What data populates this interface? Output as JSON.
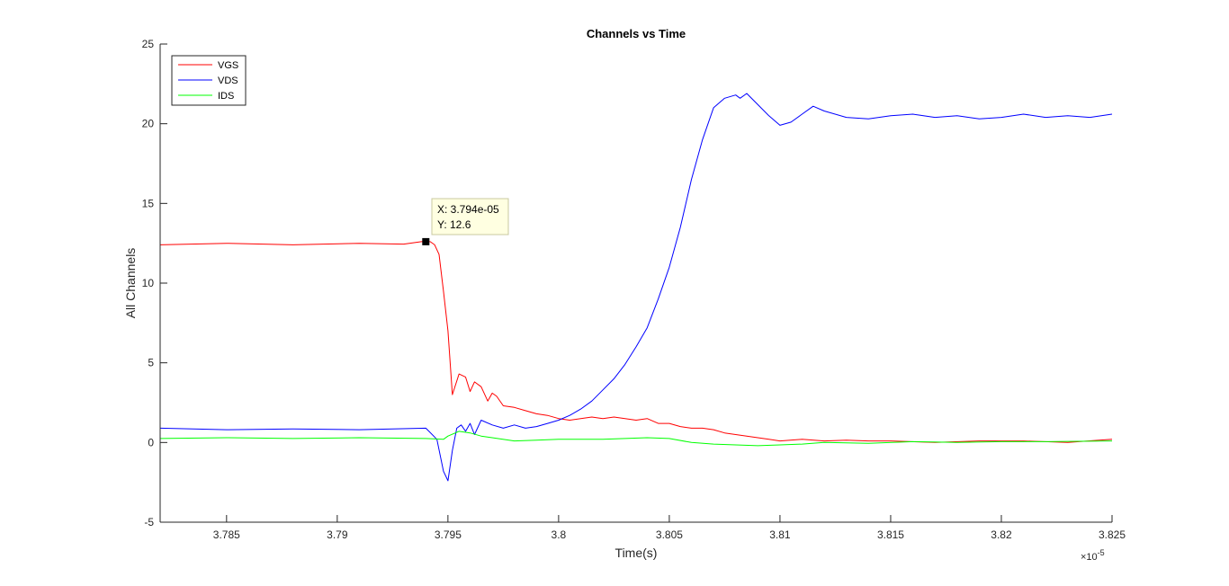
{
  "chart_data": {
    "type": "line",
    "title": "Channels vs Time",
    "xlabel": "Time(s)",
    "ylabel": "All Channels",
    "x_multiplier_label": "×10",
    "x_multiplier_exp": "-5",
    "xlim": [
      3.782,
      3.825
    ],
    "ylim": [
      -5,
      25
    ],
    "x_ticks": [
      3.785,
      3.79,
      3.795,
      3.8,
      3.805,
      3.81,
      3.815,
      3.82,
      3.825
    ],
    "x_tick_labels": [
      "3.785",
      "3.79",
      "3.795",
      "3.8",
      "3.805",
      "3.81",
      "3.815",
      "3.82",
      "3.825"
    ],
    "y_ticks": [
      -5,
      0,
      5,
      10,
      15,
      20,
      25
    ],
    "y_tick_labels": [
      "-5",
      "0",
      "5",
      "10",
      "15",
      "20",
      "25"
    ],
    "grid": false,
    "legend_position": "top-left",
    "series": [
      {
        "name": "VGS",
        "color": "#ff0000",
        "x": [
          3.782,
          3.785,
          3.788,
          3.791,
          3.793,
          3.7938,
          3.7942,
          3.7944,
          3.7946,
          3.7948,
          3.795,
          3.7952,
          3.7955,
          3.7958,
          3.796,
          3.7962,
          3.7965,
          3.7968,
          3.797,
          3.7972,
          3.7975,
          3.798,
          3.7985,
          3.799,
          3.7995,
          3.8,
          3.8005,
          3.801,
          3.8015,
          3.802,
          3.8025,
          3.803,
          3.8035,
          3.804,
          3.8045,
          3.805,
          3.8055,
          3.806,
          3.8065,
          3.807,
          3.8075,
          3.808,
          3.8085,
          3.809,
          3.8095,
          3.81,
          3.811,
          3.812,
          3.813,
          3.814,
          3.815,
          3.817,
          3.819,
          3.821,
          3.823,
          3.825
        ],
        "y": [
          12.4,
          12.5,
          12.4,
          12.5,
          12.45,
          12.6,
          12.6,
          12.4,
          11.8,
          9.5,
          7.0,
          3.0,
          4.3,
          4.1,
          3.2,
          3.8,
          3.5,
          2.6,
          3.1,
          2.9,
          2.3,
          2.2,
          2.0,
          1.8,
          1.7,
          1.5,
          1.4,
          1.5,
          1.6,
          1.5,
          1.6,
          1.5,
          1.4,
          1.5,
          1.2,
          1.2,
          1.0,
          0.9,
          0.9,
          0.8,
          0.6,
          0.5,
          0.4,
          0.3,
          0.2,
          0.1,
          0.2,
          0.1,
          0.15,
          0.1,
          0.1,
          0.0,
          0.1,
          0.1,
          0.0,
          0.2
        ]
      },
      {
        "name": "VDS",
        "color": "#0000ff",
        "x": [
          3.782,
          3.785,
          3.788,
          3.791,
          3.794,
          3.7945,
          3.7948,
          3.795,
          3.7952,
          3.7954,
          3.7956,
          3.7958,
          3.796,
          3.7962,
          3.7965,
          3.797,
          3.7975,
          3.798,
          3.7985,
          3.799,
          3.7995,
          3.8,
          3.8005,
          3.801,
          3.8015,
          3.802,
          3.8025,
          3.803,
          3.8035,
          3.804,
          3.8045,
          3.805,
          3.8055,
          3.806,
          3.8065,
          3.807,
          3.8075,
          3.808,
          3.8082,
          3.8085,
          3.809,
          3.8095,
          3.81,
          3.8105,
          3.811,
          3.8115,
          3.812,
          3.813,
          3.814,
          3.815,
          3.816,
          3.817,
          3.818,
          3.819,
          3.82,
          3.821,
          3.822,
          3.823,
          3.824,
          3.825
        ],
        "y": [
          0.9,
          0.8,
          0.85,
          0.8,
          0.9,
          0.2,
          -1.8,
          -2.4,
          -0.5,
          0.9,
          1.1,
          0.7,
          1.2,
          0.5,
          1.4,
          1.1,
          0.9,
          1.1,
          0.9,
          1.0,
          1.2,
          1.4,
          1.7,
          2.1,
          2.6,
          3.3,
          4.0,
          4.9,
          6.0,
          7.2,
          9.0,
          11.0,
          13.5,
          16.5,
          19.0,
          21.0,
          21.6,
          21.8,
          21.6,
          21.9,
          21.2,
          20.5,
          19.9,
          20.1,
          20.6,
          21.1,
          20.8,
          20.4,
          20.3,
          20.5,
          20.6,
          20.4,
          20.5,
          20.3,
          20.4,
          20.6,
          20.4,
          20.5,
          20.4,
          20.6
        ]
      },
      {
        "name": "IDS",
        "color": "#00ff00",
        "x": [
          3.782,
          3.785,
          3.788,
          3.791,
          3.794,
          3.7948,
          3.795,
          3.7955,
          3.796,
          3.7965,
          3.797,
          3.798,
          3.799,
          3.8,
          3.801,
          3.802,
          3.803,
          3.804,
          3.805,
          3.806,
          3.807,
          3.808,
          3.809,
          3.81,
          3.811,
          3.812,
          3.814,
          3.816,
          3.818,
          3.82,
          3.822,
          3.825
        ],
        "y": [
          0.25,
          0.3,
          0.25,
          0.3,
          0.25,
          0.2,
          0.4,
          0.7,
          0.6,
          0.4,
          0.3,
          0.1,
          0.15,
          0.2,
          0.2,
          0.2,
          0.25,
          0.3,
          0.25,
          0.0,
          -0.1,
          -0.15,
          -0.2,
          -0.15,
          -0.1,
          0.0,
          -0.05,
          0.05,
          0.0,
          0.05,
          0.05,
          0.1
        ]
      }
    ],
    "annotations": [
      {
        "type": "datatip",
        "x_text": "X: 3.794e-05",
        "y_text": "Y: 12.6",
        "x": 3.794,
        "y": 12.6
      }
    ]
  }
}
